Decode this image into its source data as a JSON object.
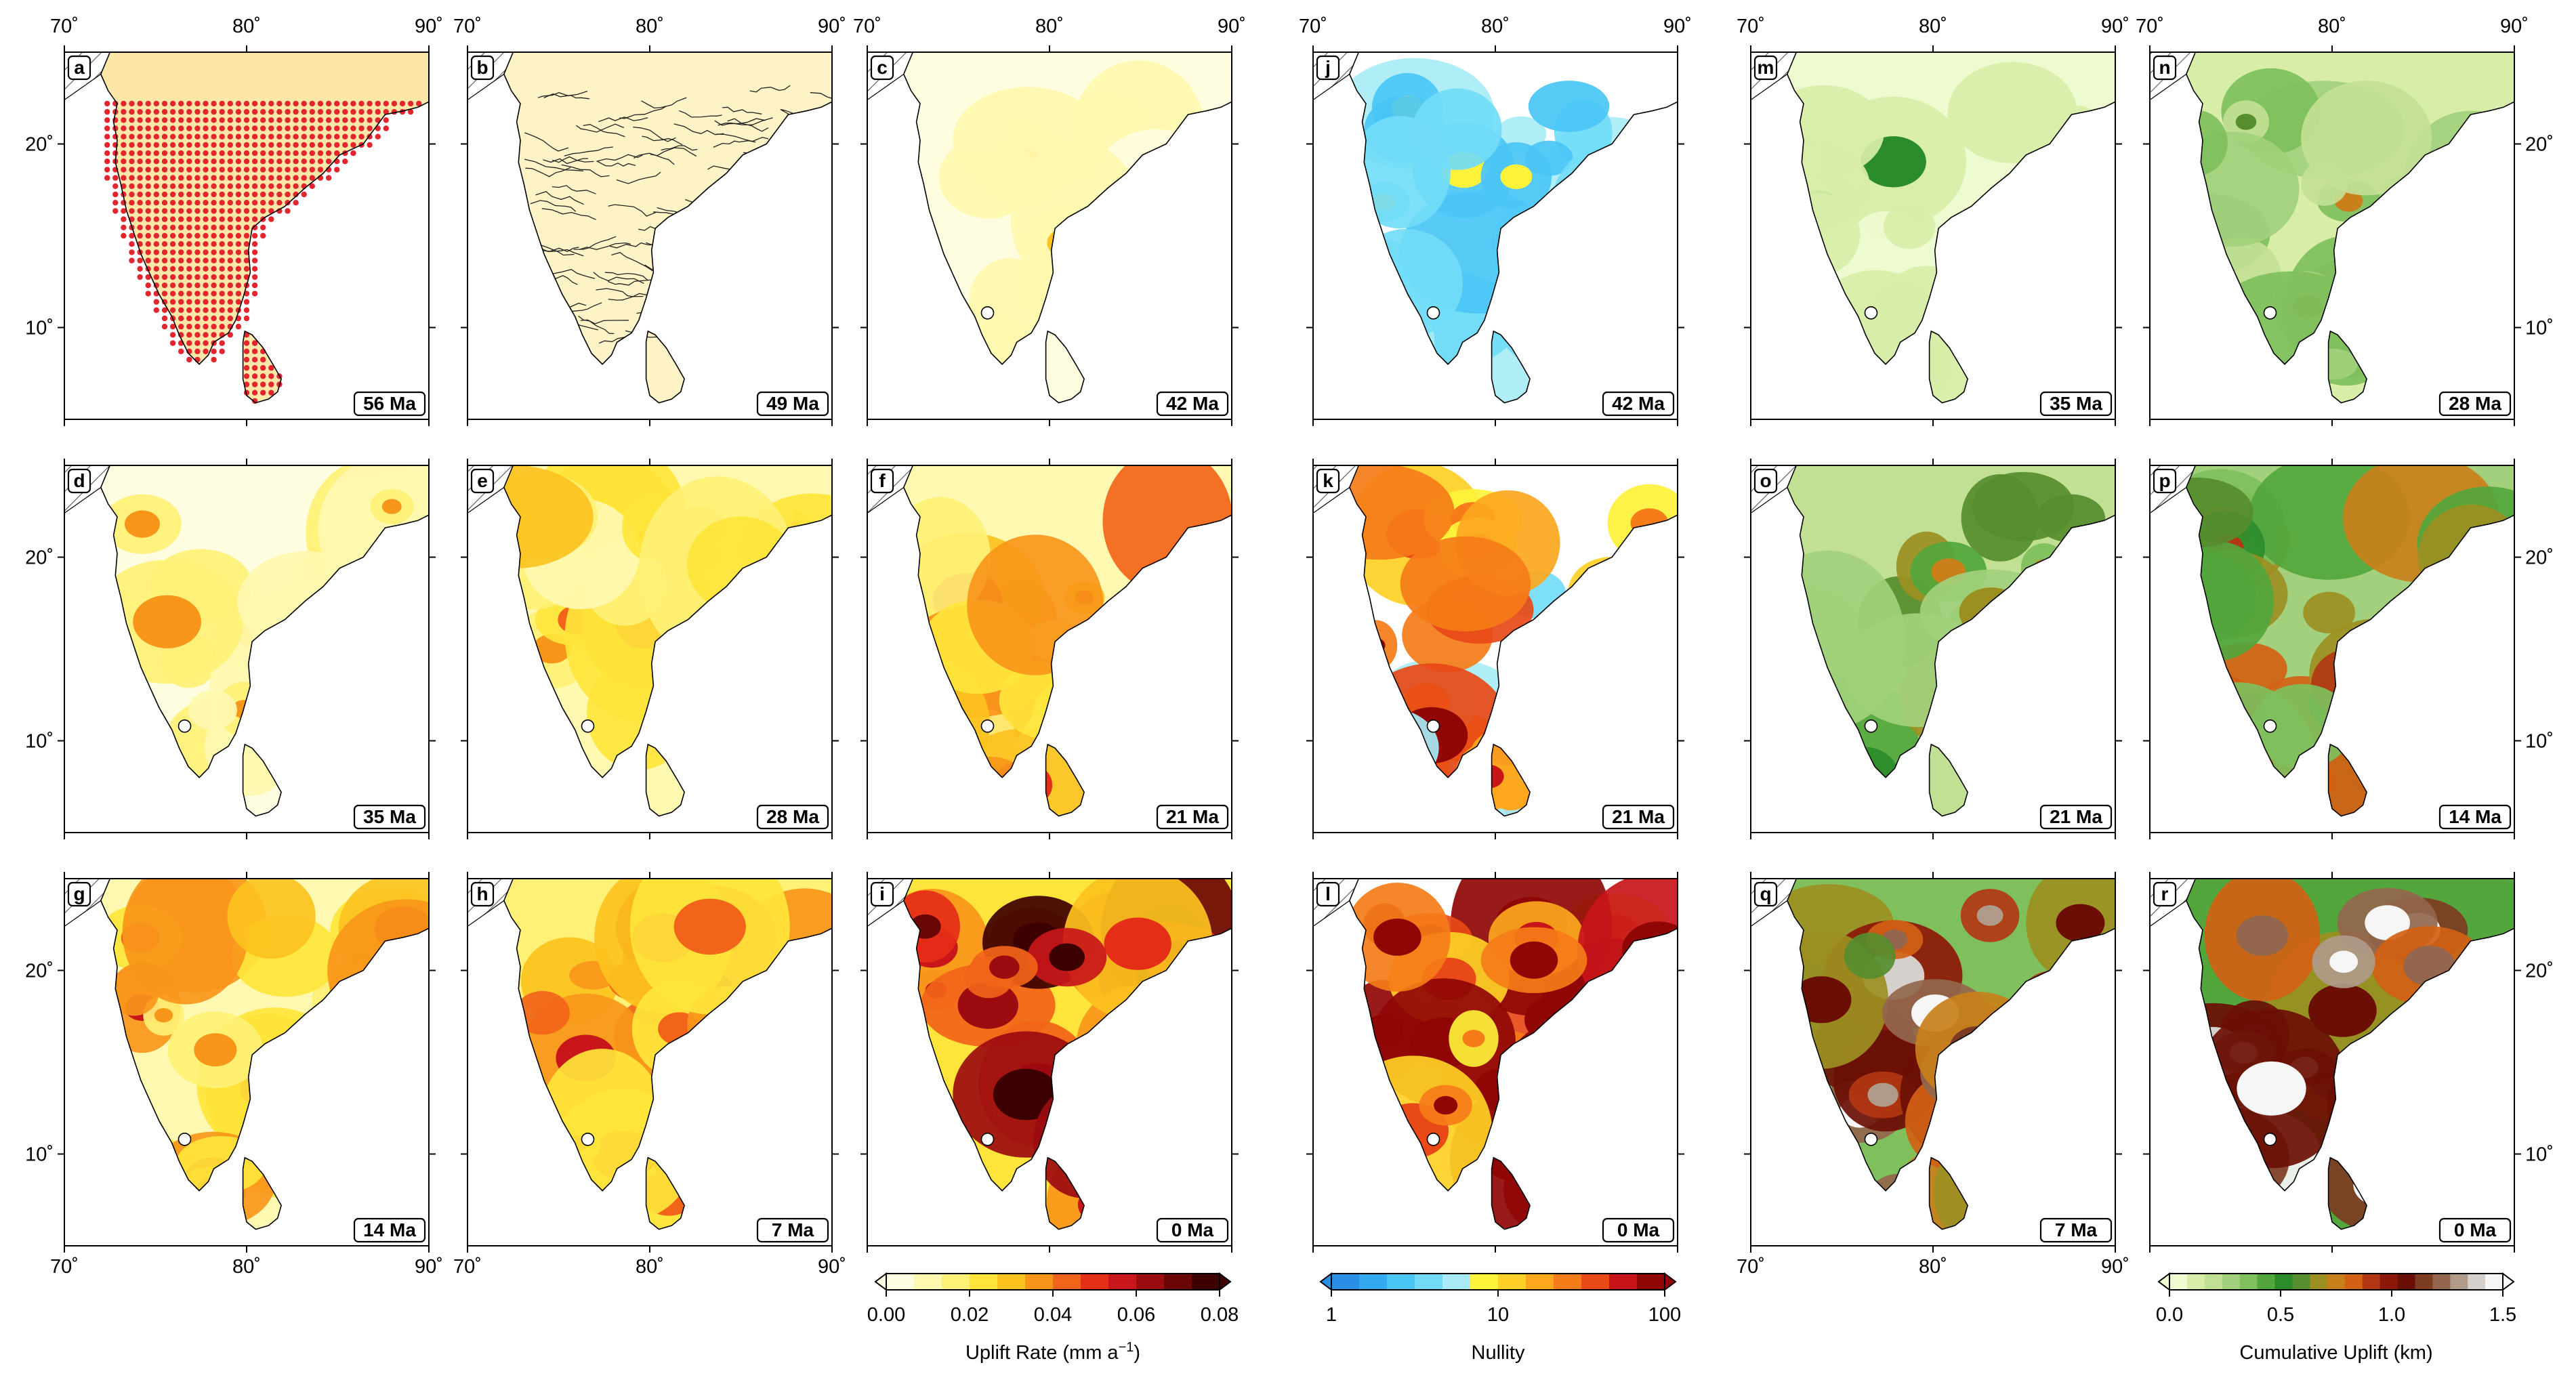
{
  "axes": {
    "lon_ticks": [
      "70˚",
      "80˚",
      "90˚"
    ],
    "lat_ticks": [
      "20˚",
      "10˚"
    ]
  },
  "panels": [
    {
      "letter": "a",
      "age": "56 Ma",
      "kind": "sample"
    },
    {
      "letter": "b",
      "age": "49 Ma",
      "kind": "rivers"
    },
    {
      "letter": "c",
      "age": "42 Ma",
      "kind": "uplift",
      "level": 0.12
    },
    {
      "letter": "j",
      "age": "42 Ma",
      "kind": "nullity",
      "level": 0.35
    },
    {
      "letter": "m",
      "age": "35 Ma",
      "kind": "cumulative",
      "level": 0.08
    },
    {
      "letter": "n",
      "age": "28 Ma",
      "kind": "cumulative",
      "level": 0.22
    },
    {
      "letter": "d",
      "age": "35 Ma",
      "kind": "uplift",
      "level": 0.2
    },
    {
      "letter": "e",
      "age": "28 Ma",
      "kind": "uplift",
      "level": 0.3
    },
    {
      "letter": "f",
      "age": "21 Ma",
      "kind": "uplift",
      "level": 0.45
    },
    {
      "letter": "k",
      "age": "21 Ma",
      "kind": "nullity",
      "level": 0.65
    },
    {
      "letter": "o",
      "age": "21 Ma",
      "kind": "cumulative",
      "level": 0.38
    },
    {
      "letter": "p",
      "age": "14 Ma",
      "kind": "cumulative",
      "level": 0.52
    },
    {
      "letter": "g",
      "age": "14 Ma",
      "kind": "uplift",
      "level": 0.4
    },
    {
      "letter": "h",
      "age": "7 Ma",
      "kind": "uplift",
      "level": 0.5
    },
    {
      "letter": "i",
      "age": "0 Ma",
      "kind": "uplift",
      "level": 0.8
    },
    {
      "letter": "l",
      "age": "0 Ma",
      "kind": "nullity",
      "level": 0.95
    },
    {
      "letter": "q",
      "age": "7 Ma",
      "kind": "cumulative",
      "level": 0.7
    },
    {
      "letter": "r",
      "age": "0 Ma",
      "kind": "cumulative",
      "level": 0.88
    }
  ],
  "colorbars": [
    {
      "name": "uplift",
      "label_main": "Uplift Rate (mm a",
      "label_sup": "−1",
      "label_end": ")",
      "tick_labels": [
        "0.00",
        "0.02",
        "0.04",
        "0.06",
        "0.08"
      ],
      "scale": "linear",
      "colors": [
        "#fffde0",
        "#fff8b0",
        "#fff176",
        "#ffe53b",
        "#fcc21e",
        "#f8961a",
        "#f26419",
        "#e52e17",
        "#c8161a",
        "#9c0b0f",
        "#6b0606",
        "#3d0000"
      ]
    },
    {
      "name": "nullity",
      "label_main": "Nullity",
      "tick_labels": [
        "1",
        "10",
        "100"
      ],
      "scale": "log",
      "colors": [
        "#2a8ee6",
        "#33aaf0",
        "#4ac6f5",
        "#72dcf7",
        "#a8ebf6",
        "#fff23a",
        "#ffd025",
        "#fca71e",
        "#f57c18",
        "#e84916",
        "#c8151a",
        "#8f0605"
      ]
    },
    {
      "name": "cumulative",
      "label_main": "Cumulative Uplift (km)",
      "tick_labels": [
        "0.0",
        "0.5",
        "1.0",
        "1.5"
      ],
      "scale": "linear",
      "colors": [
        "#eefbd0",
        "#d8eea8",
        "#c2e094",
        "#a2d07c",
        "#7fbf5c",
        "#52a63c",
        "#2b8c2b",
        "#568d2e",
        "#9c8f22",
        "#c9801a",
        "#d36115",
        "#b23712",
        "#8c1808",
        "#6b0f05",
        "#7c3c22",
        "#93664d",
        "#b09a8a",
        "#d6d0cc",
        "#f6f6f6"
      ]
    }
  ],
  "colors": {
    "sample_points": "#e3262d",
    "land_fill_sample": "#fde7a8",
    "land_fill_rivers": "#fef3c6",
    "marker": "#ffffff"
  }
}
